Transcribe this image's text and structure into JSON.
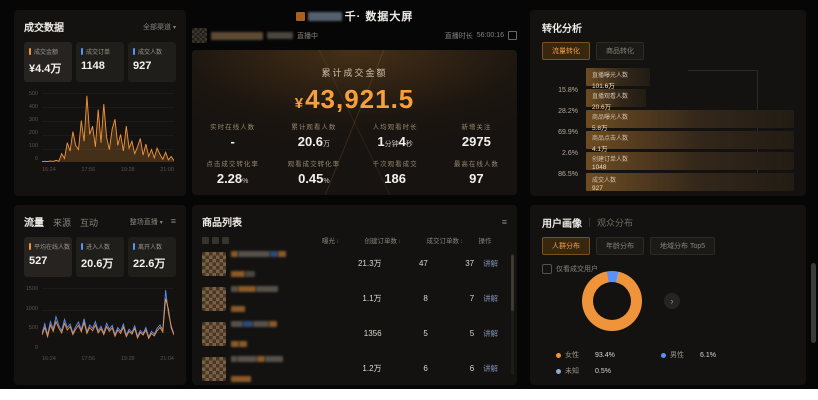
{
  "header": {
    "title_prefix": "千·",
    "title": "数据大屏",
    "status": "直播中",
    "duration_label": "直播时长",
    "duration": "56:00:16"
  },
  "deal_panel": {
    "title": "成交数据",
    "filter_label": "全部渠道",
    "cards": [
      {
        "label": "成交金额",
        "value": "¥4.4万"
      },
      {
        "label": "成交订单",
        "value": "1148"
      },
      {
        "label": "成交人数",
        "value": "927"
      }
    ]
  },
  "summary_panel": {
    "main_label": "累计成交金额",
    "main_currency": "¥",
    "main_amount": "43,921.5",
    "metrics": [
      {
        "label": "实时在线人数",
        "value": "-"
      },
      {
        "label": "累计观看人数",
        "value": "20.6",
        "unit": "万"
      },
      {
        "label": "人均观看时长",
        "value": "1",
        "unit": "分钟",
        "value2": "4",
        "unit2": "秒"
      },
      {
        "label": "新增关注",
        "value": "2975"
      },
      {
        "label": "点击成交转化率",
        "value": "2.28",
        "unit": "%"
      },
      {
        "label": "观看成交转化率",
        "value": "0.45",
        "unit": "%"
      },
      {
        "label": "千次观看成交",
        "value": "186"
      },
      {
        "label": "最高在线人数",
        "value": "97"
      }
    ]
  },
  "conversion_panel": {
    "title": "转化分析",
    "tabs": [
      {
        "label": "流量转化"
      },
      {
        "label": "商品转化"
      }
    ],
    "funnel": [
      {
        "label": "直播曝光人数",
        "value": "101.6万",
        "rate_to_next": "15.8%"
      },
      {
        "label": "直播观看人数",
        "value": "20.6万",
        "rate_to_next": "28.2%"
      },
      {
        "label": "商品曝光人数",
        "value": "5.8万",
        "rate_to_next": "69.9%"
      },
      {
        "label": "商品点击人数",
        "value": "4.1万",
        "rate_to_next": "2.6%"
      },
      {
        "label": "创建订单人数",
        "value": "1048",
        "rate_to_next": "86.5%"
      },
      {
        "label": "成交人数",
        "value": "927"
      }
    ]
  },
  "traffic_panel": {
    "tabs": [
      {
        "label": "流量"
      },
      {
        "label": "来源"
      },
      {
        "label": "互动"
      }
    ],
    "range_label": "整场直播",
    "cards": [
      {
        "label": "平均在线人数",
        "value": "527"
      },
      {
        "label": "进入人数",
        "value": "20.6万"
      },
      {
        "label": "离开人数",
        "value": "22.6万"
      }
    ]
  },
  "products_panel": {
    "title": "商品列表",
    "headers": [
      {
        "label": "曝光"
      },
      {
        "label": "创建订单数"
      },
      {
        "label": "成交订单数"
      },
      {
        "label": "操作"
      }
    ],
    "rows": [
      {
        "exposure": "21.3万",
        "created_orders": "47",
        "deal_orders": "37",
        "action": "讲解"
      },
      {
        "exposure": "1.1万",
        "created_orders": "8",
        "deal_orders": "7",
        "action": "讲解"
      },
      {
        "exposure": "1356",
        "created_orders": "5",
        "deal_orders": "5",
        "action": "讲解"
      },
      {
        "exposure": "1.2万",
        "created_orders": "6",
        "deal_orders": "6",
        "action": "讲解"
      }
    ]
  },
  "audience_panel": {
    "title": "用户画像",
    "subtitle": "观众分布",
    "tabs": [
      {
        "label": "人群分布"
      },
      {
        "label": "年龄分布"
      },
      {
        "label": "地域分布 Top5"
      }
    ],
    "checkbox_label": "仅看成交用户",
    "legend": [
      {
        "label": "女性",
        "value": "93.4%"
      },
      {
        "label": "男性",
        "value": "6.1%"
      },
      {
        "label": "未知",
        "value": "0.5%"
      }
    ]
  },
  "chart_data": [
    {
      "type": "line",
      "name": "成交金额趋势",
      "ylim": [
        0,
        500
      ],
      "y_ticks": [
        "500",
        "400",
        "300",
        "200",
        "100",
        "0"
      ],
      "x_ticks": [
        "16:24",
        "17:56",
        "19:28",
        "21:00"
      ],
      "series": [
        {
          "name": "成交金额",
          "color": "#f0943c",
          "fill": true,
          "values": [
            2,
            5,
            3,
            8,
            4,
            12,
            6,
            60,
            25,
            140,
            80,
            220,
            120,
            90,
            300,
            150,
            480,
            200,
            260,
            110,
            380,
            140,
            420,
            180,
            90,
            240,
            310,
            120,
            200,
            80,
            260,
            100,
            150,
            60,
            110,
            170,
            50,
            130,
            40,
            90,
            30,
            100,
            55,
            20,
            70,
            15,
            40,
            10
          ]
        }
      ]
    },
    {
      "type": "line",
      "name": "进入离开人数趋势",
      "ylim": [
        0,
        1500
      ],
      "y_ticks": [
        "1500",
        "1000",
        "500",
        "0"
      ],
      "x_ticks": [
        "16:24",
        "17:56",
        "19:28",
        "21:04"
      ],
      "series": [
        {
          "name": "进入人数",
          "color": "#5b8ff9",
          "fill": false,
          "values": [
            420,
            650,
            380,
            700,
            520,
            820,
            600,
            480,
            750,
            560,
            640,
            430,
            580,
            690,
            510,
            770,
            460,
            620,
            540,
            700,
            480,
            590,
            430,
            660,
            520,
            610,
            390,
            560,
            470,
            640,
            380,
            520,
            440,
            600,
            350,
            490,
            420,
            560,
            330,
            470,
            400,
            540,
            620,
            500,
            1450,
            900,
            600,
            400
          ]
        },
        {
          "name": "离开人数",
          "color": "#f0943c",
          "fill": false,
          "values": [
            380,
            560,
            340,
            620,
            470,
            700,
            540,
            430,
            660,
            500,
            580,
            390,
            520,
            610,
            460,
            680,
            420,
            560,
            480,
            620,
            430,
            530,
            390,
            580,
            470,
            550,
            350,
            500,
            420,
            570,
            340,
            470,
            400,
            540,
            310,
            440,
            380,
            500,
            300,
            420,
            360,
            480,
            560,
            450,
            1250,
            1000,
            550,
            380
          ]
        }
      ]
    },
    {
      "type": "donut",
      "name": "人群分布",
      "slices": [
        {
          "label": "女性",
          "value": 93.4,
          "color": "#f0943c"
        },
        {
          "label": "男性",
          "value": 6.1,
          "color": "#5b8ff9"
        },
        {
          "label": "未知",
          "value": 0.5,
          "color": "#8fa8d8"
        }
      ]
    },
    {
      "type": "funnel",
      "name": "流量转化漏斗",
      "steps": [
        {
          "label": "直播曝光人数",
          "value": "101.6万",
          "rate_to_next": "15.8%"
        },
        {
          "label": "直播观看人数",
          "value": "20.6万",
          "rate_to_next": "28.2%"
        },
        {
          "label": "商品曝光人数",
          "value": "5.8万",
          "rate_to_next": "69.9%"
        },
        {
          "label": "商品点击人数",
          "value": "4.1万",
          "rate_to_next": "2.6%"
        },
        {
          "label": "创建订单人数",
          "value": "1048",
          "rate_to_next": "86.5%"
        },
        {
          "label": "成交人数",
          "value": "927"
        }
      ]
    }
  ]
}
